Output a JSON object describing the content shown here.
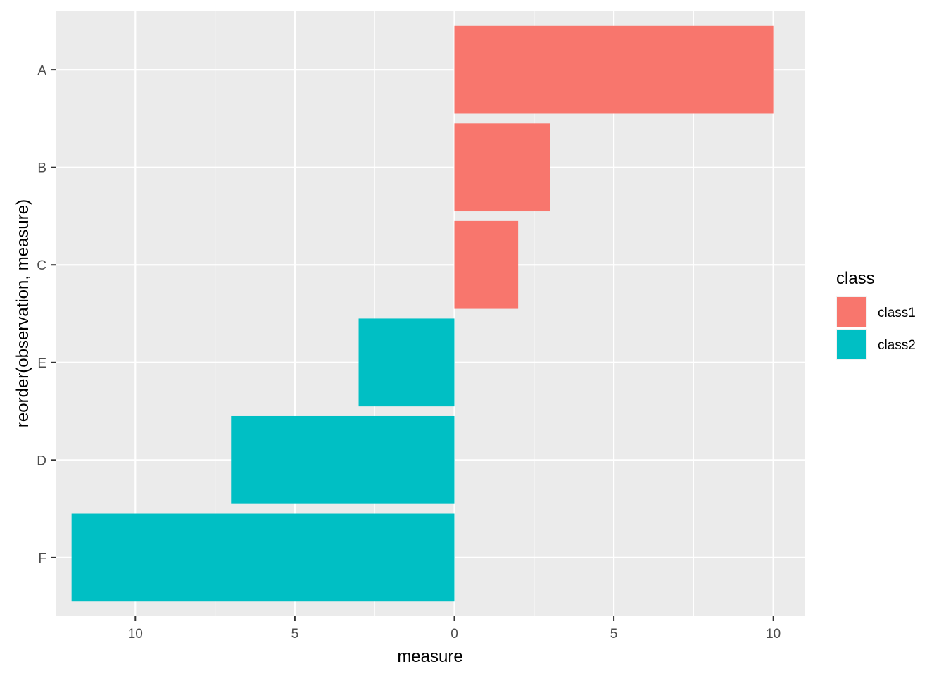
{
  "chart_data": {
    "type": "bar",
    "orientation": "horizontal",
    "title": "",
    "xlabel": "measure",
    "ylabel": "reorder(observation, measure)",
    "categories": [
      "A",
      "B",
      "C",
      "E",
      "D",
      "F"
    ],
    "values": [
      10,
      3,
      2,
      -3,
      -7,
      -12
    ],
    "classes": [
      "class1",
      "class1",
      "class1",
      "class2",
      "class2",
      "class2"
    ],
    "xlim": [
      -12.5,
      11.0
    ],
    "x_ticks": [
      -10,
      -5,
      0,
      5,
      10
    ],
    "x_tick_labels": [
      "10",
      "5",
      "0",
      "5",
      "10"
    ],
    "grid": true,
    "legend": {
      "title": "class",
      "position": "right",
      "entries": [
        {
          "label": "class1",
          "color": "#F8766D"
        },
        {
          "label": "class2",
          "color": "#00BFC4"
        }
      ]
    },
    "panel_background": "#EBEBEB",
    "grid_color": "#FFFFFF"
  }
}
